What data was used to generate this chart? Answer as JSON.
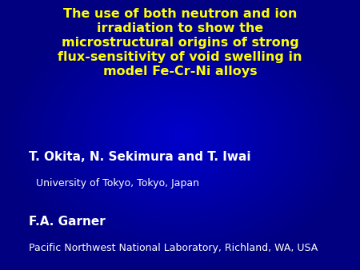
{
  "title_line1": "The use of both neutron and ion",
  "title_line2": "irradiation to show the",
  "title_line3": "microstructural origins of strong",
  "title_line4": "flux-sensitivity of void swelling in",
  "title_line5": "model Fe-Cr-Ni alloys",
  "author1": "T. Okita, N. Sekimura and T. Iwai",
  "affil1": "University of Tokyo, Tokyo, Japan",
  "author2": "F.A. Garner",
  "affil2": "Pacific Northwest National Laboratory, Richland, WA, USA",
  "bg_color": "#000080",
  "bg_center_color": "#0000cc",
  "title_color": "#ffff00",
  "author_color": "#ffffff",
  "affil_color": "#ffffff",
  "title_fontsize": 11.5,
  "author_fontsize": 11,
  "affil_fontsize": 9
}
